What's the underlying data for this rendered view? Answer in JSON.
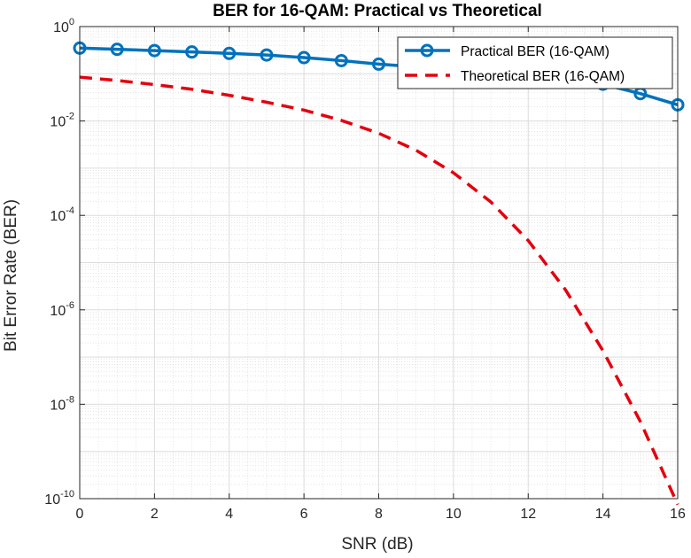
{
  "chart_data": {
    "type": "line",
    "title": "BER for 16-QAM: Practical vs Theoretical",
    "xlabel": "SNR (dB)",
    "ylabel": "Bit Error Rate (BER)",
    "xlim": [
      0,
      16
    ],
    "ylim": [
      1e-10,
      1
    ],
    "yscale": "log",
    "grid": true,
    "minor_grid": true,
    "legend_position": "top-right",
    "x_ticks": [
      0,
      2,
      4,
      6,
      8,
      10,
      12,
      14,
      16
    ],
    "y_ticks": [
      {
        "base": "10",
        "exp": "0",
        "value": 1
      },
      {
        "base": "10",
        "exp": "-2",
        "value": 0.01
      },
      {
        "base": "10",
        "exp": "-4",
        "value": 0.0001
      },
      {
        "base": "10",
        "exp": "-6",
        "value": 1e-06
      },
      {
        "base": "10",
        "exp": "-8",
        "value": 1e-08
      },
      {
        "base": "10",
        "exp": "-10",
        "value": 1e-10
      }
    ],
    "series": [
      {
        "name": "Practical BER (16-QAM)",
        "color": "#0072BD",
        "style": "solid",
        "marker": "circle",
        "x": [
          0,
          1,
          2,
          3,
          4,
          5,
          6,
          7,
          8,
          9,
          10,
          11,
          12,
          13,
          14,
          15,
          16
        ],
        "y": [
          0.35,
          0.33,
          0.31,
          0.29,
          0.27,
          0.25,
          0.22,
          0.19,
          0.16,
          0.14,
          0.12,
          0.1,
          0.085,
          0.072,
          0.06,
          0.038,
          0.022
        ]
      },
      {
        "name": "Theoretical BER (16-QAM)",
        "color": "#E3000F",
        "style": "dashed",
        "marker": "none",
        "x": [
          0,
          1,
          2,
          3,
          4,
          5,
          6,
          7,
          8,
          9,
          10,
          11,
          12,
          13,
          14,
          15,
          16
        ],
        "y": [
          0.085,
          0.072,
          0.059,
          0.047,
          0.035,
          0.025,
          0.017,
          0.0103,
          0.0055,
          0.0024,
          0.0008,
          0.000193,
          2.94e-05,
          2.63e-06,
          1.36e-07,
          4.3e-09,
          7.5e-11
        ]
      }
    ]
  }
}
